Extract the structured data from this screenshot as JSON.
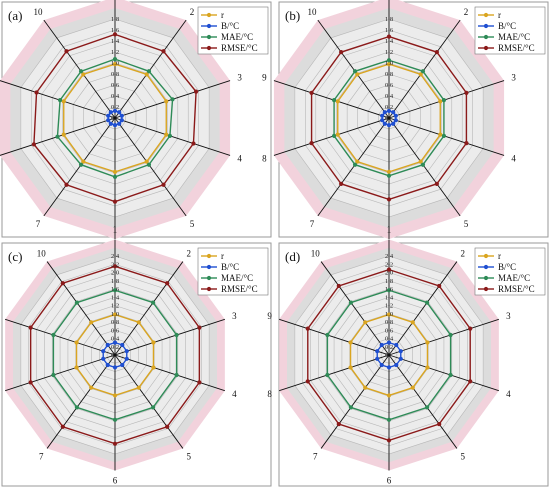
{
  "chart_data": [
    {
      "type": "radar",
      "panel_label": "(a)",
      "axis_labels": [
        "1",
        "2",
        "3",
        "4",
        "5",
        "6",
        "7",
        "8",
        "9",
        "10"
      ],
      "rmax": 1.8,
      "ticks": [
        "0",
        "0.2",
        "0.4",
        "0.6",
        "0.8",
        "1.0",
        "1.2",
        "1.4",
        "1.6",
        "1.8"
      ],
      "legend_placement": "top-right",
      "series": [
        {
          "name": "r",
          "color": "#DAA520",
          "values": [
            0.98,
            0.98,
            0.98,
            0.98,
            0.98,
            0.98,
            0.98,
            0.98,
            0.98,
            0.98
          ]
        },
        {
          "name": "B/°C",
          "color": "#1f4fd1",
          "values": [
            0.13,
            0.13,
            0.13,
            0.13,
            0.13,
            0.13,
            0.13,
            0.13,
            0.13,
            0.13
          ]
        },
        {
          "name": "MAE/°C",
          "color": "#2e8b57",
          "values": [
            1.07,
            1.05,
            1.1,
            1.05,
            1.05,
            1.07,
            1.05,
            1.1,
            1.05,
            1.05
          ]
        },
        {
          "name": "RMSE/°C",
          "color": "#8b1a1a",
          "values": [
            1.52,
            1.5,
            1.55,
            1.5,
            1.5,
            1.52,
            1.5,
            1.55,
            1.5,
            1.5
          ]
        }
      ]
    },
    {
      "type": "radar",
      "panel_label": "(b)",
      "axis_labels": [
        "1",
        "2",
        "3",
        "4",
        "5",
        "6",
        "7",
        "8",
        "9",
        "10"
      ],
      "rmax": 1.8,
      "ticks": [
        "0",
        "0.2",
        "0.4",
        "0.6",
        "0.8",
        "1.0",
        "1.2",
        "1.4",
        "1.6",
        "1.8"
      ],
      "legend_placement": "top-right",
      "series": [
        {
          "name": "r",
          "color": "#DAA520",
          "values": [
            0.98,
            0.98,
            0.98,
            0.98,
            0.98,
            0.98,
            0.98,
            0.98,
            0.98,
            0.98
          ]
        },
        {
          "name": "B/°C",
          "color": "#1f4fd1",
          "values": [
            0.13,
            0.13,
            0.13,
            0.13,
            0.13,
            0.13,
            0.13,
            0.13,
            0.13,
            0.13
          ]
        },
        {
          "name": "MAE/°C",
          "color": "#2e8b57",
          "values": [
            1.05,
            1.05,
            1.05,
            1.05,
            1.05,
            1.05,
            1.05,
            1.05,
            1.05,
            1.05
          ]
        },
        {
          "name": "RMSE/°C",
          "color": "#8b1a1a",
          "values": [
            1.48,
            1.48,
            1.48,
            1.48,
            1.48,
            1.48,
            1.48,
            1.48,
            1.48,
            1.48
          ]
        }
      ]
    },
    {
      "type": "radar",
      "panel_label": "(c)",
      "axis_labels": [
        "1",
        "2",
        "3",
        "4",
        "5",
        "6",
        "7",
        "8",
        "9",
        "10"
      ],
      "rmax": 2.4,
      "ticks": [
        "0",
        "0.2",
        "0.4",
        "0.6",
        "0.8",
        "1.0",
        "1.2",
        "1.4",
        "1.6",
        "1.8",
        "2.0",
        "2.2",
        "2.4"
      ],
      "legend_placement": "top-right",
      "series": [
        {
          "name": "r",
          "color": "#DAA520",
          "values": [
            0.98,
            0.98,
            0.98,
            0.98,
            0.98,
            0.98,
            0.98,
            0.98,
            0.98,
            0.98
          ]
        },
        {
          "name": "B/°C",
          "color": "#1f4fd1",
          "values": [
            0.3,
            0.3,
            0.3,
            0.3,
            0.3,
            0.3,
            0.3,
            0.3,
            0.3,
            0.3
          ]
        },
        {
          "name": "MAE/°C",
          "color": "#2e8b57",
          "values": [
            1.57,
            1.57,
            1.57,
            1.57,
            1.57,
            1.57,
            1.57,
            1.57,
            1.57,
            1.57
          ]
        },
        {
          "name": "RMSE/°C",
          "color": "#8b1a1a",
          "values": [
            2.15,
            2.15,
            2.15,
            2.15,
            2.15,
            2.15,
            2.15,
            2.15,
            2.15,
            2.15
          ]
        }
      ]
    },
    {
      "type": "radar",
      "panel_label": "(d)",
      "axis_labels": [
        "1",
        "2",
        "3",
        "4",
        "5",
        "6",
        "7",
        "8",
        "9",
        "10"
      ],
      "rmax": 2.4,
      "ticks": [
        "0",
        "0.2",
        "0.4",
        "0.6",
        "0.8",
        "1.0",
        "1.2",
        "1.4",
        "1.6",
        "1.8",
        "2.0",
        "2.2",
        "2.4"
      ],
      "legend_placement": "top-right",
      "series": [
        {
          "name": "r",
          "color": "#DAA520",
          "values": [
            0.98,
            0.98,
            0.98,
            0.98,
            0.98,
            0.98,
            0.98,
            0.98,
            0.98,
            0.98
          ]
        },
        {
          "name": "B/°C",
          "color": "#1f4fd1",
          "values": [
            0.3,
            0.3,
            0.3,
            0.3,
            0.3,
            0.3,
            0.3,
            0.3,
            0.3,
            0.3
          ]
        },
        {
          "name": "MAE/°C",
          "color": "#2e8b57",
          "values": [
            1.57,
            1.57,
            1.57,
            1.57,
            1.57,
            1.57,
            1.57,
            1.57,
            1.57,
            1.57
          ]
        },
        {
          "name": "RMSE/°C",
          "color": "#8b1a1a",
          "values": [
            2.07,
            2.07,
            2.07,
            2.07,
            2.07,
            2.07,
            2.07,
            2.07,
            2.07,
            2.07
          ]
        }
      ]
    }
  ]
}
